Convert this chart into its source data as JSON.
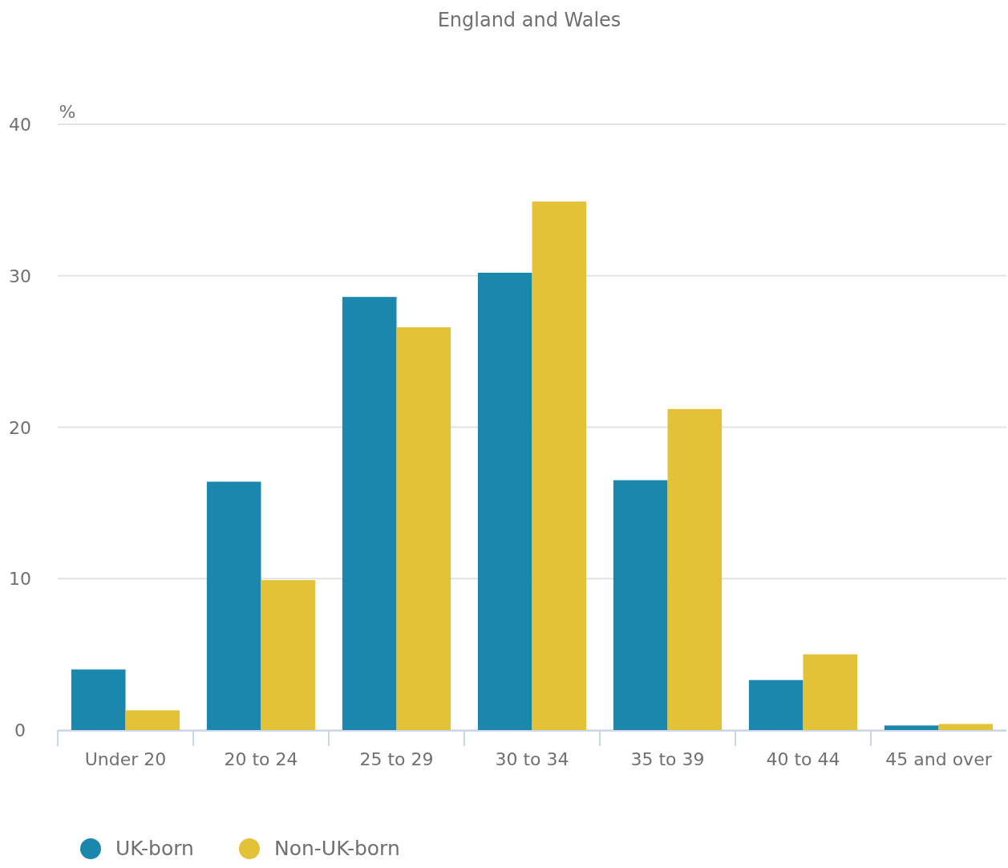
{
  "chart_data": {
    "type": "bar",
    "title": "England and Wales",
    "ylabel": "%",
    "categories": [
      "Under 20",
      "20 to 24",
      "25 to 29",
      "30 to 34",
      "35 to 39",
      "40 to 44",
      "45 and over"
    ],
    "series": [
      {
        "name": "UK-born",
        "color": "#1b87ad",
        "values": [
          4.0,
          16.4,
          28.6,
          30.2,
          16.5,
          3.3,
          0.3
        ]
      },
      {
        "name": "Non-UK-born",
        "color": "#e3c238",
        "values": [
          1.3,
          9.9,
          26.6,
          34.9,
          21.2,
          5.0,
          0.4
        ]
      }
    ],
    "ylim": [
      0,
      40
    ],
    "yticks": [
      0,
      10,
      20,
      30,
      40
    ],
    "grid": "y",
    "legend": "bottom left"
  }
}
